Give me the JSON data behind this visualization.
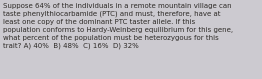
{
  "text": "Suppose 64% of the individuals in a remote mountain village can\ntaste phenylthiocarbamide (PTC) and must, therefore, have at\nleast one copy of the dominant PTC taster allele. If this\npopulation conforms to Hardy-Weinberg equilibrium for this gene,\nwhat percent of the population must be heterozygous for this\ntrait? A) 40%  B) 48%  C) 16%  D) 32%",
  "background_color": "#cccad0",
  "text_color": "#2e2b28",
  "font_size": 5.05,
  "fig_width": 2.62,
  "fig_height": 0.79,
  "dpi": 100
}
